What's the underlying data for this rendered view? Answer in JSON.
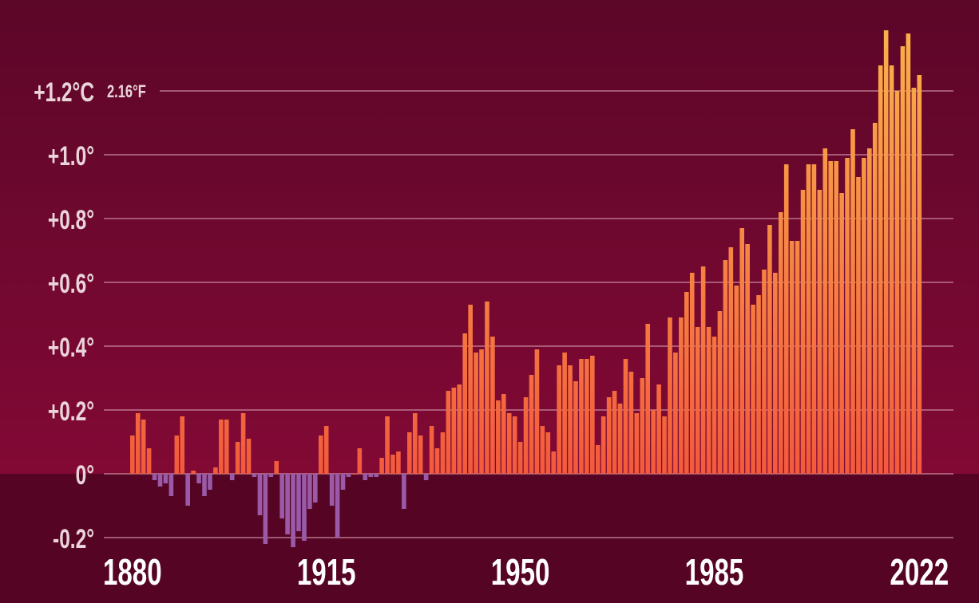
{
  "chart_data": {
    "type": "bar",
    "title": "",
    "xlabel": "",
    "ylabel": "",
    "unit": "°C",
    "ylim": [
      -0.25,
      1.4
    ],
    "yticks": [
      {
        "value": 1.2,
        "label": "+1.2°C",
        "secondary": "2.16°F"
      },
      {
        "value": 1.0,
        "label": "+1.0°"
      },
      {
        "value": 0.8,
        "label": "+0.8°"
      },
      {
        "value": 0.6,
        "label": "+0.6°"
      },
      {
        "value": 0.4,
        "label": "+0.4°"
      },
      {
        "value": 0.2,
        "label": "+0.2°"
      },
      {
        "value": 0.0,
        "label": "0°"
      },
      {
        "value": -0.2,
        "label": "-0.2°"
      }
    ],
    "xticks": [
      {
        "value": 1880,
        "label": "1880"
      },
      {
        "value": 1915,
        "label": "1915"
      },
      {
        "value": 1950,
        "label": "1950"
      },
      {
        "value": 1985,
        "label": "1985"
      },
      {
        "value": 2022,
        "label": "2022"
      }
    ],
    "grid": true,
    "colors": {
      "warm_bar_low": "#f25a3c",
      "warm_bar_high": "#fbb04a",
      "cool_bar": "#9b5aa8",
      "gridline": "#c98a9c",
      "label": "#ead4da",
      "year_label": "#ffffff",
      "bg_top": "#5c0628",
      "bg_bottom": "#8c0a38",
      "below_zero_bg": "#560424"
    },
    "series": [
      {
        "x_start": 1880,
        "x_end": 2022,
        "values": [
          0.12,
          0.19,
          0.17,
          0.08,
          -0.02,
          -0.04,
          -0.03,
          -0.07,
          0.12,
          0.18,
          -0.1,
          0.01,
          -0.03,
          -0.07,
          -0.05,
          0.02,
          0.17,
          0.17,
          -0.02,
          0.1,
          0.19,
          0.11,
          -0.01,
          -0.13,
          -0.22,
          -0.01,
          0.04,
          -0.14,
          -0.19,
          -0.23,
          -0.18,
          -0.21,
          -0.11,
          -0.09,
          0.12,
          0.15,
          -0.1,
          -0.2,
          -0.05,
          -0.01,
          0.0,
          0.08,
          -0.02,
          -0.01,
          -0.01,
          0.05,
          0.18,
          0.06,
          0.07,
          -0.11,
          0.13,
          0.19,
          0.12,
          -0.02,
          0.15,
          0.08,
          0.13,
          0.26,
          0.27,
          0.28,
          0.44,
          0.53,
          0.38,
          0.39,
          0.54,
          0.43,
          0.23,
          0.25,
          0.19,
          0.18,
          0.1,
          0.24,
          0.31,
          0.39,
          0.15,
          0.13,
          0.07,
          0.34,
          0.38,
          0.34,
          0.29,
          0.36,
          0.36,
          0.37,
          0.09,
          0.18,
          0.24,
          0.26,
          0.22,
          0.36,
          0.32,
          0.19,
          0.3,
          0.47,
          0.2,
          0.28,
          0.18,
          0.49,
          0.38,
          0.49,
          0.57,
          0.63,
          0.46,
          0.65,
          0.46,
          0.43,
          0.51,
          0.67,
          0.71,
          0.59,
          0.77,
          0.72,
          0.53,
          0.56,
          0.64,
          0.78,
          0.63,
          0.82,
          0.97,
          0.73,
          0.73,
          0.89,
          0.97,
          0.97,
          0.89,
          1.02,
          0.98,
          0.98,
          0.88,
          0.99,
          1.08,
          0.93,
          0.99,
          1.02,
          1.1,
          1.28,
          1.39,
          1.28,
          1.2,
          1.34,
          1.38,
          1.21,
          1.25
        ]
      }
    ]
  }
}
